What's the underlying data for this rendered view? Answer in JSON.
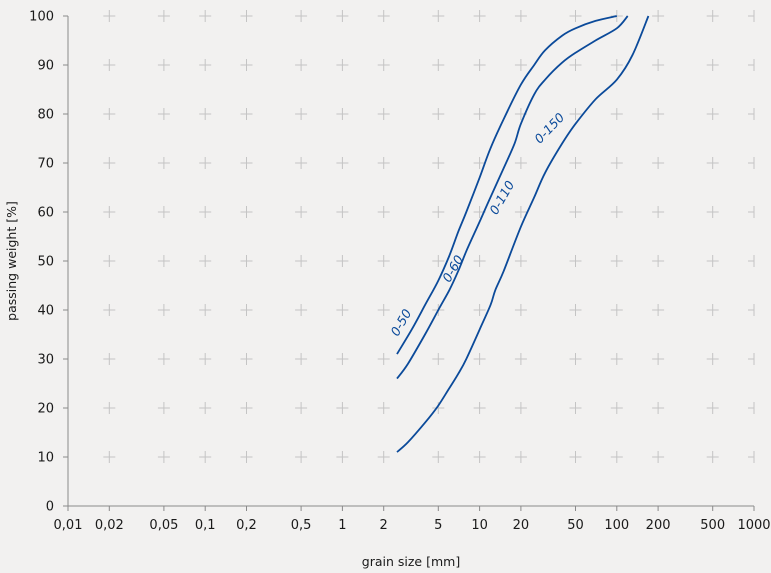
{
  "chart_data": {
    "type": "line",
    "xscale": "log",
    "xlabel": "grain size [mm]",
    "ylabel": "passing weight [%]",
    "xlim": [
      0.01,
      1000
    ],
    "ylim": [
      0,
      100
    ],
    "x_ticks": [
      {
        "value": 0.01,
        "label": "0,01"
      },
      {
        "value": 0.02,
        "label": "0,02"
      },
      {
        "value": 0.05,
        "label": "0,05"
      },
      {
        "value": 0.1,
        "label": "0,1"
      },
      {
        "value": 0.2,
        "label": "0,2"
      },
      {
        "value": 0.5,
        "label": "0,5"
      },
      {
        "value": 1,
        "label": "1"
      },
      {
        "value": 2,
        "label": "2"
      },
      {
        "value": 5,
        "label": "5"
      },
      {
        "value": 10,
        "label": "10"
      },
      {
        "value": 20,
        "label": "20"
      },
      {
        "value": 50,
        "label": "50"
      },
      {
        "value": 100,
        "label": "100"
      },
      {
        "value": 200,
        "label": "200"
      },
      {
        "value": 500,
        "label": "500"
      },
      {
        "value": 1000,
        "label": "1000"
      }
    ],
    "y_ticks": [
      0,
      10,
      20,
      30,
      40,
      50,
      60,
      70,
      80,
      90,
      100
    ],
    "grid": "cross markers",
    "series": [
      {
        "name": "0-50",
        "color": "#0b4a9a",
        "points": [
          [
            2.5,
            31
          ],
          [
            3.2,
            36
          ],
          [
            4,
            41
          ],
          [
            5,
            46
          ],
          [
            6,
            51
          ],
          [
            7,
            56
          ],
          [
            8,
            60
          ],
          [
            10,
            67
          ],
          [
            12,
            73
          ],
          [
            15,
            79
          ],
          [
            20,
            86
          ],
          [
            25,
            90
          ],
          [
            30,
            93
          ],
          [
            40,
            96
          ],
          [
            50,
            97.5
          ],
          [
            70,
            99
          ],
          [
            100,
            100
          ]
        ]
      },
      {
        "name": "0-60",
        "color": "#0b4a9a",
        "points": [
          [
            2.5,
            26
          ],
          [
            3,
            29
          ],
          [
            4,
            35
          ],
          [
            5,
            40
          ],
          [
            6,
            44
          ],
          [
            7,
            48
          ],
          [
            8,
            52
          ],
          [
            10,
            58
          ],
          [
            12,
            63
          ],
          [
            15,
            69
          ],
          [
            18,
            74
          ],
          [
            20,
            78
          ],
          [
            25,
            84
          ],
          [
            30,
            87
          ],
          [
            40,
            90.5
          ],
          [
            50,
            92.5
          ],
          [
            70,
            95
          ],
          [
            100,
            97.5
          ],
          [
            120,
            100
          ]
        ]
      },
      {
        "name": "0-110",
        "color": "#0b4a9a",
        "points": [
          [
            2.5,
            11
          ],
          [
            3,
            13
          ],
          [
            4,
            17
          ],
          [
            5,
            20.5
          ],
          [
            6,
            24
          ],
          [
            7,
            27
          ],
          [
            8,
            30
          ],
          [
            10,
            36
          ],
          [
            12,
            41
          ],
          [
            13,
            44
          ],
          [
            15,
            48
          ],
          [
            20,
            57
          ],
          [
            25,
            63
          ],
          [
            30,
            68
          ],
          [
            40,
            74
          ],
          [
            50,
            78
          ],
          [
            70,
            83
          ],
          [
            100,
            87
          ],
          [
            130,
            92
          ],
          [
            170,
            100
          ]
        ]
      }
    ],
    "annotations": [
      {
        "text": "0-50",
        "x": 2.85,
        "y": 37,
        "angle": -60
      },
      {
        "text": "0-60",
        "x": 6.8,
        "y": 48,
        "angle": -60
      },
      {
        "text": "0-110",
        "x": 15.5,
        "y": 62.5,
        "angle": -60
      },
      {
        "text": "0-150",
        "x": 34,
        "y": 76.5,
        "angle": -46
      }
    ]
  }
}
